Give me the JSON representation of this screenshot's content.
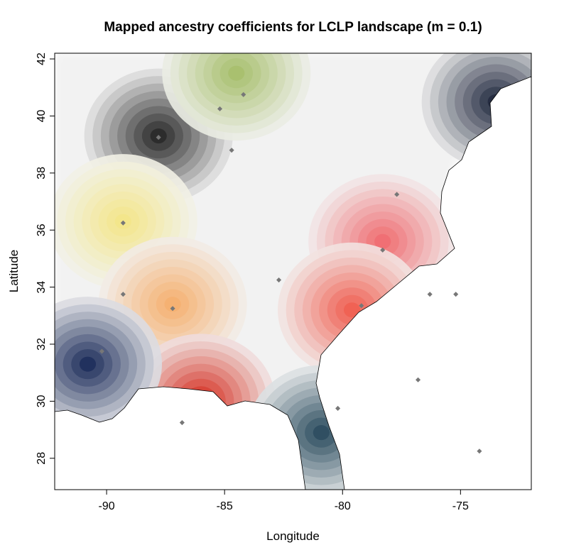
{
  "chart_data": {
    "type": "heatmap",
    "title": "Mapped ancestry coefficients for LCLP landscape (m = 0.1)",
    "xlabel": "Longitude",
    "ylabel": "Latitude",
    "xlim": [
      -92.2,
      -72.0
    ],
    "ylim": [
      26.9,
      42.2
    ],
    "x_ticks": [
      -90,
      -85,
      -80,
      -75
    ],
    "x_tick_labels": [
      "-90",
      "-85",
      "-80",
      "-75"
    ],
    "y_ticks": [
      28,
      30,
      32,
      34,
      36,
      38,
      40,
      42
    ],
    "y_tick_labels": [
      "28",
      "30",
      "32",
      "34",
      "36",
      "38",
      "40",
      "42"
    ],
    "grid": false,
    "clusters": [
      {
        "name": "grey",
        "color": "#2a2a2a",
        "center": [
          -87.8,
          39.3
        ]
      },
      {
        "name": "olive",
        "color": "#a8bf6e",
        "center": [
          -84.5,
          41.5
        ]
      },
      {
        "name": "slate",
        "color": "#232b40",
        "center": [
          -73.5,
          40.5
        ]
      },
      {
        "name": "yellow",
        "color": "#f3e68a",
        "center": [
          -89.3,
          36.3
        ]
      },
      {
        "name": "pink",
        "color": "#ef6e72",
        "center": [
          -78.3,
          35.6
        ]
      },
      {
        "name": "orange",
        "color": "#f5b070",
        "center": [
          -87.2,
          33.4
        ]
      },
      {
        "name": "red",
        "color": "#d42e20",
        "center": [
          -86.0,
          30.0
        ]
      },
      {
        "name": "salmon",
        "color": "#f06052",
        "center": [
          -79.6,
          33.2
        ]
      },
      {
        "name": "navy",
        "color": "#1f2f5c",
        "center": [
          -90.8,
          31.3
        ]
      },
      {
        "name": "teal",
        "color": "#2d4e60",
        "center": [
          -80.9,
          28.9
        ]
      }
    ],
    "sample_points": [
      {
        "lon": -85.2,
        "lat": 40.25
      },
      {
        "lon": -84.2,
        "lat": 40.75
      },
      {
        "lon": -87.8,
        "lat": 39.25
      },
      {
        "lon": -84.7,
        "lat": 38.8
      },
      {
        "lon": -89.3,
        "lat": 36.25
      },
      {
        "lon": -77.7,
        "lat": 37.25
      },
      {
        "lon": -78.3,
        "lat": 35.3
      },
      {
        "lon": -82.7,
        "lat": 34.25
      },
      {
        "lon": -87.2,
        "lat": 33.25
      },
      {
        "lon": -89.3,
        "lat": 33.75
      },
      {
        "lon": -79.2,
        "lat": 33.35
      },
      {
        "lon": -76.3,
        "lat": 33.75
      },
      {
        "lon": -75.2,
        "lat": 33.75
      },
      {
        "lon": -90.2,
        "lat": 31.75
      },
      {
        "lon": -76.8,
        "lat": 30.75
      },
      {
        "lon": -80.2,
        "lat": 29.75
      },
      {
        "lon": -86.8,
        "lat": 29.25
      },
      {
        "lon": -74.2,
        "lat": 28.25
      }
    ]
  }
}
